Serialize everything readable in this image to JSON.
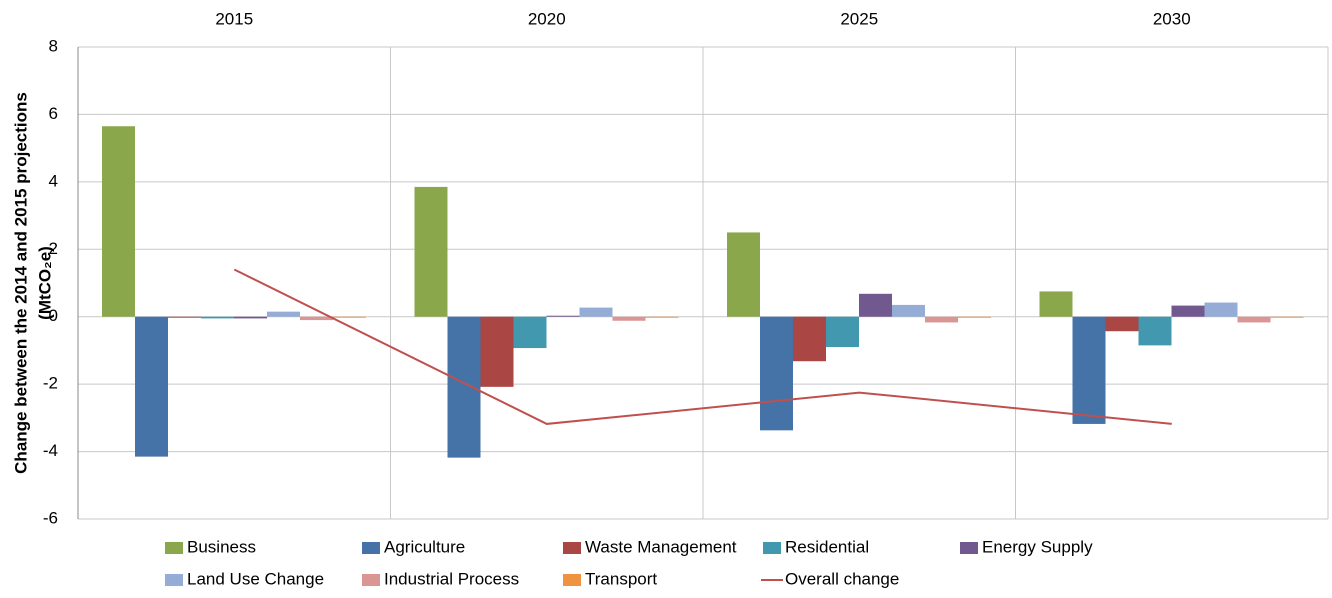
{
  "chart_data": {
    "type": "bar",
    "y_label": [
      "Change between the 2014 and 2015 projections",
      "(MtCO₂e)"
    ],
    "categories": [
      "2015",
      "2020",
      "2025",
      "2030"
    ],
    "ylim": [
      -6,
      8
    ],
    "yticks": [
      -6,
      -4,
      -2,
      0,
      2,
      4,
      6,
      8
    ],
    "grid": true,
    "series": [
      {
        "name": "Business",
        "color": "#8aa84b",
        "values": [
          5.65,
          3.85,
          2.5,
          0.75
        ]
      },
      {
        "name": "Agriculture",
        "color": "#4572a7",
        "values": [
          -4.15,
          -4.18,
          -3.37,
          -3.18
        ]
      },
      {
        "name": "Waste Management",
        "color": "#aa4643",
        "values": [
          -0.03,
          -2.08,
          -1.32,
          -0.43
        ]
      },
      {
        "name": "Residential",
        "color": "#4198af",
        "values": [
          -0.05,
          -0.93,
          -0.9,
          -0.85
        ]
      },
      {
        "name": "Energy Supply",
        "color": "#71588f",
        "values": [
          -0.05,
          0.03,
          0.68,
          0.33
        ]
      },
      {
        "name": "Land Use Change",
        "color": "#94acd6",
        "values": [
          0.15,
          0.27,
          0.35,
          0.42
        ]
      },
      {
        "name": "Industrial Process",
        "color": "#d99694",
        "values": [
          -0.1,
          -0.12,
          -0.17,
          -0.17
        ]
      },
      {
        "name": "Transport",
        "color": "#f09340",
        "values": [
          0,
          -0.02,
          -0.03,
          -0.02
        ]
      },
      {
        "name": "Overall change",
        "color": "#c0504d",
        "type": "line",
        "values": [
          1.4,
          -3.18,
          -2.25,
          -3.18
        ]
      }
    ]
  }
}
